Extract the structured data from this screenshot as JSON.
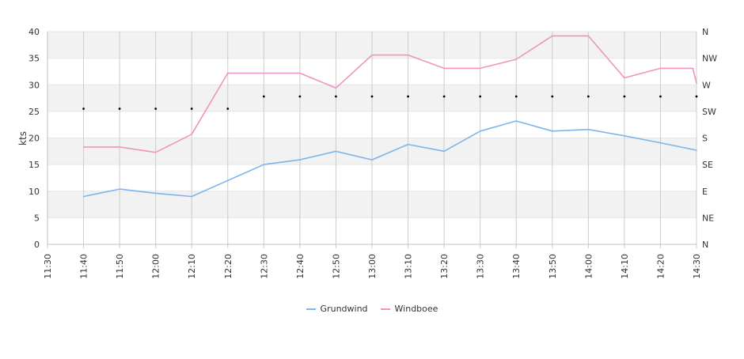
{
  "chart_data": {
    "type": "line",
    "ylabel": "kts",
    "ylim": [
      0,
      40
    ],
    "y_ticks": [
      0,
      5,
      10,
      15,
      20,
      25,
      30,
      35,
      40
    ],
    "x_range": [
      "11:30",
      "14:30"
    ],
    "x_tick_labels": [
      "11:30",
      "11:40",
      "11:50",
      "12:00",
      "12:10",
      "12:20",
      "12:30",
      "12:40",
      "12:50",
      "13:00",
      "13:10",
      "13:20",
      "13:30",
      "13:40",
      "13:50",
      "14:00",
      "14:10",
      "14:20",
      "14:30"
    ],
    "right_axis_labels": [
      "N",
      "NE",
      "E",
      "SE",
      "S",
      "SW",
      "W",
      "NW",
      "N"
    ],
    "grid": true,
    "legend_position": "bottom",
    "series": [
      {
        "name": "Grundwind",
        "color": "#7cb5ec",
        "x": [
          "11:40",
          "11:50",
          "12:00",
          "12:10",
          "12:20",
          "12:30",
          "12:40",
          "12:50",
          "13:00",
          "13:10",
          "13:20",
          "13:30",
          "13:40",
          "13:50",
          "14:00",
          "14:10",
          "14:20",
          "14:30"
        ],
        "values": [
          9.0,
          10.4,
          9.6,
          9.0,
          12.0,
          15.0,
          15.9,
          17.5,
          15.9,
          18.8,
          17.5,
          21.3,
          23.2,
          21.3,
          21.6,
          20.4,
          19.1,
          17.7
        ]
      },
      {
        "name": "Windboee",
        "color": "#f093c0",
        "x": [
          "11:40",
          "11:50",
          "12:00",
          "12:10",
          "12:20",
          "12:30",
          "12:40",
          "12:50",
          "13:00",
          "13:10",
          "13:20",
          "13:30",
          "13:40",
          "13:50",
          "14:00",
          "14:10",
          "14:20",
          "14:29",
          "14:30"
        ],
        "values": [
          18.3,
          18.3,
          17.3,
          20.7,
          32.2,
          32.2,
          32.2,
          29.4,
          35.6,
          35.6,
          33.1,
          33.1,
          34.8,
          39.2,
          39.2,
          31.3,
          33.1,
          33.1,
          30.3
        ]
      }
    ],
    "direction": {
      "marker_color": "#000000",
      "x": [
        "11:40",
        "11:50",
        "12:00",
        "12:10",
        "12:20",
        "12:30",
        "12:40",
        "12:50",
        "13:00",
        "13:10",
        "13:20",
        "13:30",
        "13:40",
        "13:50",
        "14:00",
        "14:10",
        "14:20",
        "14:30"
      ],
      "values": [
        25.5,
        25.5,
        25.5,
        25.5,
        25.5,
        27.8,
        27.8,
        27.8,
        27.8,
        27.8,
        27.8,
        27.8,
        27.8,
        27.8,
        27.8,
        27.8,
        27.8,
        27.8
      ]
    },
    "colors": {
      "band": "#f2f2f2",
      "grid": "#cccccc",
      "axis": "#c0c0c0"
    }
  }
}
